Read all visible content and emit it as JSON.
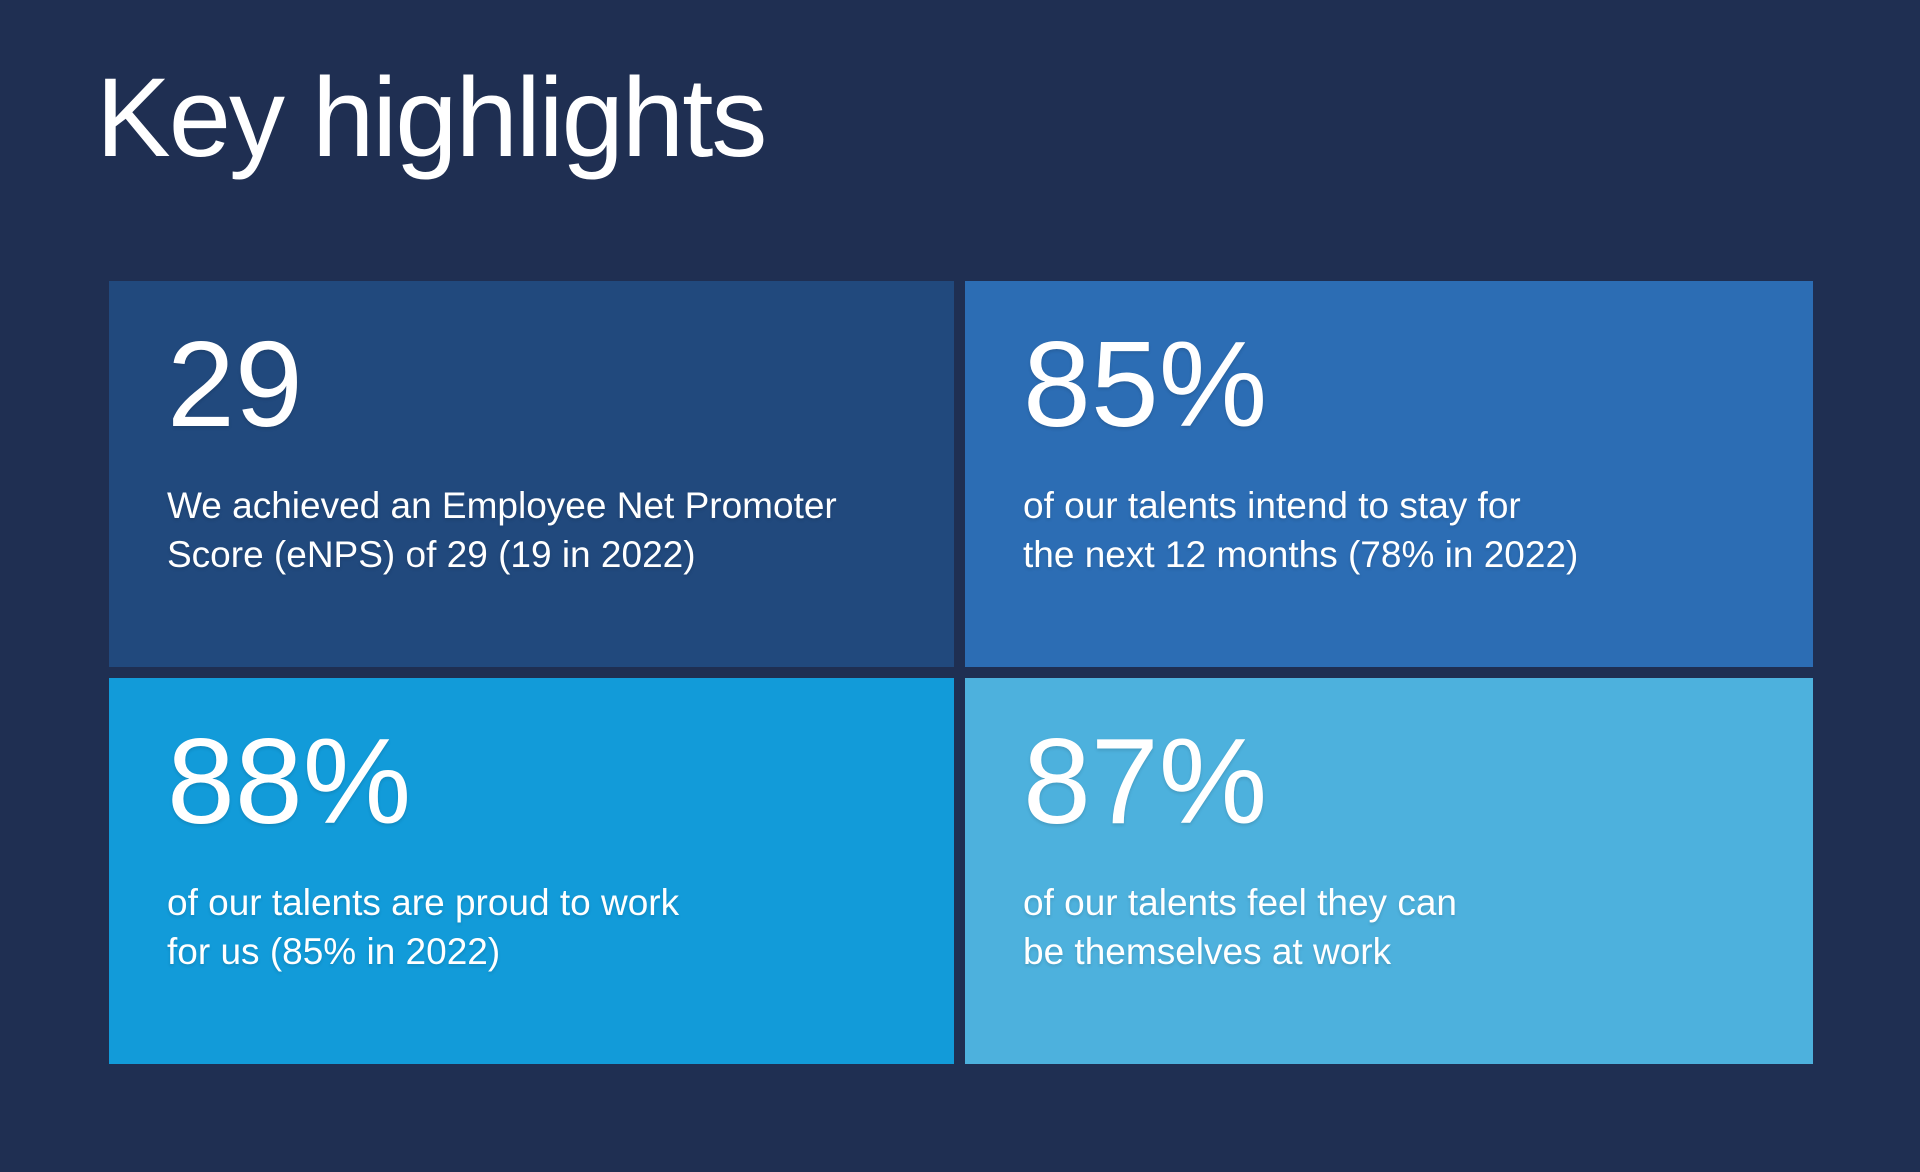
{
  "title": "Key highlights",
  "colors": {
    "background": "#1F2F52",
    "text": "#FFFFFF",
    "card_enps": "#21497D",
    "card_stay": "#2C6DB4",
    "card_proud": "#129BD9",
    "card_themselves": "#4DB1DD"
  },
  "cards": [
    {
      "id": "enps",
      "value": "29",
      "description": "We achieved an Employee Net Promoter\nScore (eNPS) of 29 (19 in 2022)",
      "color": "#21497D"
    },
    {
      "id": "stay",
      "value": "85%",
      "description": "of our talents intend to stay for\nthe next 12 months (78% in 2022)",
      "color": "#2C6DB4"
    },
    {
      "id": "proud",
      "value": "88%",
      "description": "of our talents are proud to work\nfor us (85% in 2022)",
      "color": "#129BD9"
    },
    {
      "id": "themselves",
      "value": "87%",
      "description": "of our talents feel they can\nbe themselves at work",
      "color": "#4DB1DD"
    }
  ]
}
